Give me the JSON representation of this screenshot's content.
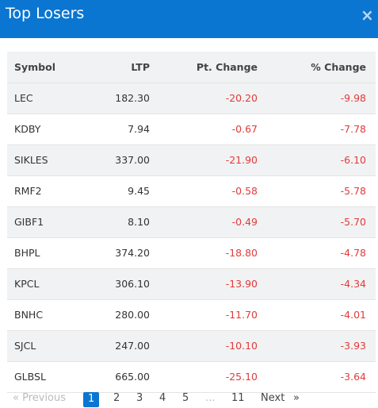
{
  "header": {
    "title": "Top Losers",
    "close_icon": "×"
  },
  "table": {
    "columns": [
      "Symbol",
      "LTP",
      "Pt. Change",
      "% Change"
    ],
    "rows": [
      {
        "symbol": "LEC",
        "ltp": "182.30",
        "pt_change": "-20.20",
        "pct_change": "-9.98"
      },
      {
        "symbol": "KDBY",
        "ltp": "7.94",
        "pt_change": "-0.67",
        "pct_change": "-7.78"
      },
      {
        "symbol": "SIKLES",
        "ltp": "337.00",
        "pt_change": "-21.90",
        "pct_change": "-6.10"
      },
      {
        "symbol": "RMF2",
        "ltp": "9.45",
        "pt_change": "-0.58",
        "pct_change": "-5.78"
      },
      {
        "symbol": "GIBF1",
        "ltp": "8.10",
        "pt_change": "-0.49",
        "pct_change": "-5.70"
      },
      {
        "symbol": "BHPL",
        "ltp": "374.20",
        "pt_change": "-18.80",
        "pct_change": "-4.78"
      },
      {
        "symbol": "KPCL",
        "ltp": "306.10",
        "pt_change": "-13.90",
        "pct_change": "-4.34"
      },
      {
        "symbol": "BNHC",
        "ltp": "280.00",
        "pt_change": "-11.70",
        "pct_change": "-4.01"
      },
      {
        "symbol": "SJCL",
        "ltp": "247.00",
        "pt_change": "-10.10",
        "pct_change": "-3.93"
      },
      {
        "symbol": "GLBSL",
        "ltp": "665.00",
        "pt_change": "-25.10",
        "pct_change": "-3.64"
      }
    ]
  },
  "pagination": {
    "prev": "« Previous",
    "pages": [
      "1",
      "2",
      "3",
      "4",
      "5",
      "...",
      "11"
    ],
    "active": "1",
    "next": "Next",
    "last": "»"
  },
  "colors": {
    "header_bg": "#0a76d1",
    "negative": "#e23b3b",
    "row_alt": "#f1f2f3"
  }
}
